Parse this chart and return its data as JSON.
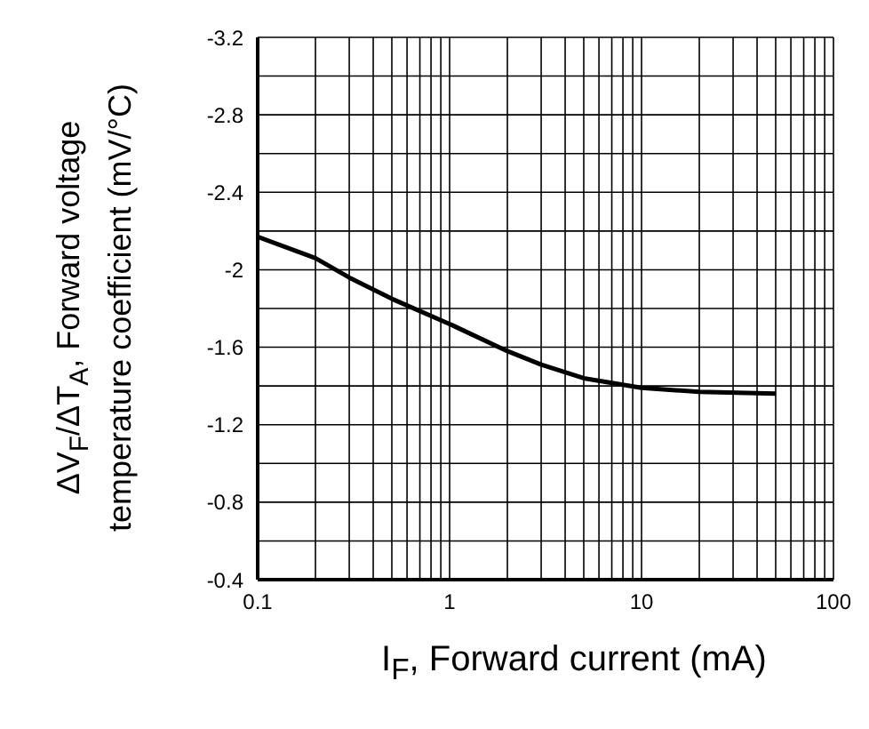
{
  "chart_data": {
    "type": "line",
    "xlabel": "I$_{F}$, Forward current (mA)",
    "ylabel": "ΔV$_{F}$/ΔT$_{A}$, Forward voltage\ntemperature coefficient (mV/°C)",
    "x": [
      0.1,
      0.2,
      0.3,
      0.5,
      1,
      2,
      3,
      5,
      10,
      20,
      50
    ],
    "series": [
      {
        "color": "#000000",
        "values": [
          -2.17,
          -2.06,
          -1.96,
          -1.85,
          -1.72,
          -1.58,
          -1.51,
          -1.44,
          -1.39,
          -1.37,
          -1.36
        ]
      }
    ],
    "xlim": [
      0.1,
      100
    ],
    "ylim": [
      -0.4,
      -3.2
    ],
    "xticks": [
      0.1,
      {
        "value": 0.2,
        "label": null
      },
      {
        "value": 0.3,
        "label": null
      },
      {
        "value": 0.4,
        "label": null
      },
      {
        "value": 0.5,
        "label": null
      },
      {
        "value": 0.6,
        "label": null
      },
      {
        "value": 0.7,
        "label": null
      },
      {
        "value": 0.8,
        "label": null
      },
      {
        "value": 0.9,
        "label": null
      },
      1,
      {
        "value": 2,
        "label": null
      },
      {
        "value": 3,
        "label": null
      },
      {
        "value": 4,
        "label": null
      },
      {
        "value": 5,
        "label": null
      },
      {
        "value": 6,
        "label": null
      },
      {
        "value": 7,
        "label": null
      },
      {
        "value": 8,
        "label": null
      },
      {
        "value": 9,
        "label": null
      },
      10,
      {
        "value": 20,
        "label": null
      },
      {
        "value": 30,
        "label": null
      },
      {
        "value": 40,
        "label": null
      },
      {
        "value": 50,
        "label": null
      },
      {
        "value": 60,
        "label": null
      },
      {
        "value": 70,
        "label": null
      },
      {
        "value": 80,
        "label": null
      },
      {
        "value": 90,
        "label": null
      },
      100
    ],
    "yticks": [
      -0.4,
      {
        "value": -0.6,
        "label": null
      },
      -0.8,
      {
        "value": -1.0,
        "label": null
      },
      -1.2,
      {
        "value": -1.4,
        "label": null
      },
      -1.6,
      {
        "value": -1.8,
        "label": null
      },
      -2,
      {
        "value": -2.2,
        "label": null
      },
      -2.4,
      {
        "value": -2.6,
        "label": null
      },
      -2.8,
      {
        "value": -3.0,
        "label": null
      },
      -3.2
    ],
    "log": "x",
    "grid": true,
    "marker": "none"
  }
}
